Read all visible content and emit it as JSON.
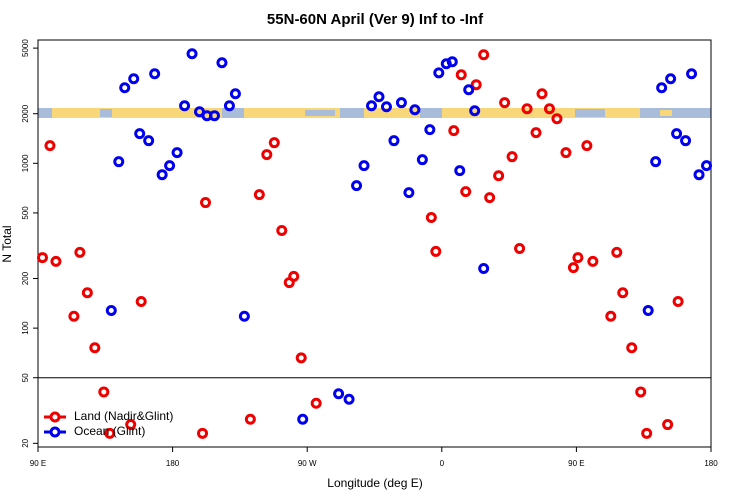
{
  "chart_data": {
    "type": "scatter",
    "title": "55N-60N April (Ver 9)   Inf to -Inf",
    "x_label": "Longitude (deg E)",
    "y_label": "N Total",
    "log_y": true,
    "legend": "lower left",
    "reference_line": 50,
    "xlim": [
      90,
      540
    ],
    "ylim": [
      19,
      5600
    ],
    "xticks": [
      {
        "value": 90,
        "label": "90 E"
      },
      {
        "value": 180,
        "label": "180"
      },
      {
        "value": 270,
        "label": "90 W"
      },
      {
        "value": 360,
        "label": "0"
      },
      {
        "value": 450,
        "label": "90 E"
      },
      {
        "value": 540,
        "label": "180"
      }
    ],
    "yticks": [
      20,
      50,
      100,
      200,
      500,
      1000,
      2000,
      5000
    ],
    "series": [
      {
        "name": "Land (Nadir&Glint)",
        "color": "#ee0000",
        "x": [
          93,
          98,
          102,
          114,
          118,
          123,
          128,
          134,
          138,
          152,
          159,
          200,
          202,
          232,
          238,
          243,
          248,
          253,
          258,
          261,
          266,
          276,
          353,
          356,
          368,
          373,
          376,
          383,
          388,
          392,
          398,
          402,
          407,
          412,
          417,
          423,
          427,
          432,
          437,
          443,
          448,
          451,
          457,
          461,
          473,
          477,
          481,
          487,
          493,
          497,
          511,
          518
        ],
        "values": [
          268,
          1280,
          254,
          118,
          288,
          164,
          76,
          41,
          23,
          26,
          145,
          23,
          578,
          28,
          646,
          1130,
          1334,
          391,
          189,
          206,
          66,
          35,
          469,
          292,
          1578,
          3444,
          673,
          2999,
          4560,
          619,
          841,
          2333,
          1097,
          304,
          2143,
          1535,
          2644,
          2143,
          1865,
          1161,
          233,
          268,
          1280,
          254,
          118,
          288,
          164,
          76,
          41,
          23,
          26,
          145
        ]
      },
      {
        "name": "Ocean (Glint)",
        "color": "#0000ee",
        "x": [
          139,
          144,
          148,
          154,
          158,
          164,
          168,
          173,
          178,
          183,
          188,
          193,
          198,
          203,
          208,
          213,
          218,
          222,
          228,
          267,
          291,
          298,
          303,
          308,
          313,
          318,
          323,
          328,
          333,
          338,
          342,
          347,
          352,
          358,
          363,
          367,
          372,
          378,
          382,
          388,
          498,
          503,
          507,
          513,
          517,
          523,
          527,
          532,
          537
        ],
        "values": [
          128,
          1023,
          2875,
          3260,
          1513,
          1372,
          3494,
          853,
          968,
          1161,
          2234,
          4624,
          2056,
          1945,
          1945,
          4074,
          2234,
          2644,
          118,
          28,
          40,
          37,
          732,
          968,
          2234,
          2535,
          2205,
          1372,
          2333,
          664,
          2113,
          1052,
          1600,
          3540,
          4018,
          4130,
          903,
          2793,
          2084,
          230,
          128,
          1023,
          2875,
          3260,
          1513,
          1372,
          3494,
          853,
          968
        ]
      }
    ]
  }
}
